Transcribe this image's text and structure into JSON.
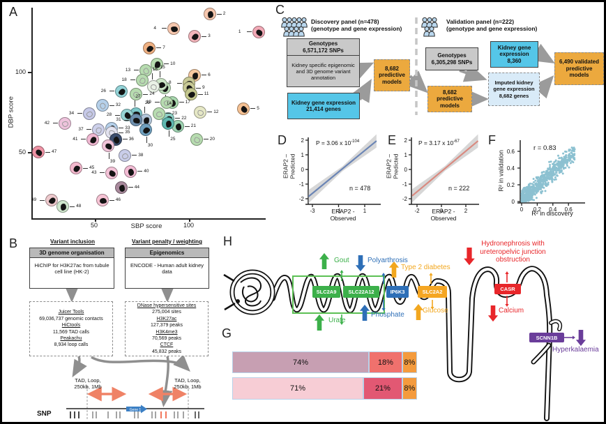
{
  "panel_labels": {
    "a": "A",
    "b": "B",
    "c": "C",
    "d": "D",
    "e": "E",
    "f": "F",
    "g": "G",
    "h": "H"
  },
  "chart_data": [
    {
      "panel": "A",
      "type": "scatter",
      "xlabel": "SBP score",
      "ylabel": "DBP score",
      "x_ticks": [
        50,
        100
      ],
      "y_ticks": [
        50,
        100
      ],
      "xlim": [
        15,
        145
      ],
      "ylim": [
        10,
        140
      ],
      "points": [
        {
          "n": 1,
          "sbp": 137,
          "dbp": 125,
          "color": "#f2a9b6",
          "side": "left",
          "blob": "dark"
        },
        {
          "n": 2,
          "sbp": 111,
          "dbp": 136,
          "color": "#f6c7ae",
          "side": "right",
          "blob": "dark"
        },
        {
          "n": 3,
          "sbp": 103,
          "dbp": 122,
          "color": "#f2b4ba",
          "side": "right",
          "blob": "dark"
        },
        {
          "n": 4,
          "sbp": 92,
          "dbp": 127,
          "color": "#f6c7ae",
          "side": "left",
          "blob": "dark"
        },
        {
          "n": 5,
          "sbp": 129,
          "dbp": 77,
          "color": "#f5c193",
          "side": "right",
          "blob": "dark"
        },
        {
          "n": 6,
          "sbp": 103,
          "dbp": 98,
          "color": "#f6c9a0",
          "side": "right",
          "blob": "dark"
        },
        {
          "n": 7,
          "sbp": 79,
          "dbp": 115,
          "color": "#f0b183",
          "side": "right",
          "blob": "dark"
        },
        {
          "n": 8,
          "sbp": 100,
          "dbp": 93,
          "color": "#c9ca96",
          "side": "left",
          "blob": "dark"
        },
        {
          "n": 9,
          "sbp": 100,
          "dbp": 90,
          "color": "#c9ca96",
          "side": "right",
          "blob": "dark"
        },
        {
          "n": 10,
          "sbp": 83,
          "dbp": 105,
          "color": "#b7dcb0",
          "side": "right",
          "blob": "dark"
        },
        {
          "n": 11,
          "sbp": 101,
          "dbp": 86,
          "color": "#c4c78e",
          "side": "right",
          "blob": "dark"
        },
        {
          "n": 12,
          "sbp": 106,
          "dbp": 75,
          "color": "#e6e8c6",
          "side": "right",
          "blob": "light"
        },
        {
          "n": 13,
          "sbp": 77,
          "dbp": 101,
          "color": "#b7dcb0",
          "side": "left",
          "blob": "light"
        },
        {
          "n": 14,
          "sbp": 87,
          "dbp": 90,
          "color": "#bfe0bb",
          "side": "below",
          "blob": "dark"
        },
        {
          "n": 15,
          "sbp": 85,
          "dbp": 92,
          "color": "#cde7c8",
          "side": "above",
          "blob": "dark"
        },
        {
          "n": 16,
          "sbp": 81,
          "dbp": 91,
          "color": "#e9f2e6",
          "side": "above",
          "blob": "light"
        },
        {
          "n": 17,
          "sbp": 91,
          "dbp": 81,
          "color": "#a8d8ae",
          "side": "right",
          "blob": "dark"
        },
        {
          "n": 18,
          "sbp": 75,
          "dbp": 95,
          "color": "#b7dcb0",
          "side": "left",
          "blob": "light"
        },
        {
          "n": 19,
          "sbp": 88,
          "dbp": 81,
          "color": "#b7dcb0",
          "side": "left",
          "blob": "light"
        },
        {
          "n": 20,
          "sbp": 104,
          "dbp": 58,
          "color": "#b7dcb0",
          "side": "right",
          "blob": "light"
        },
        {
          "n": 21,
          "sbp": 94,
          "dbp": 66,
          "color": "#9ed4b2",
          "side": "right",
          "blob": "dark"
        },
        {
          "n": 22,
          "sbp": 89,
          "dbp": 71,
          "color": "#8fd0c6",
          "side": "right",
          "blob": "dark"
        },
        {
          "n": 23,
          "sbp": 84,
          "dbp": 74,
          "color": "#b7dcb0",
          "side": "right",
          "blob": "light"
        },
        {
          "n": 24,
          "sbp": 72,
          "dbp": 86,
          "color": "#b7dcb0",
          "side": "right",
          "blob": "light"
        },
        {
          "n": 25,
          "sbp": 89,
          "dbp": 68,
          "color": "#5fb8b0",
          "side": "below",
          "blob": "dark"
        },
        {
          "n": 26,
          "sbp": 64,
          "dbp": 88,
          "color": "#93d2d6",
          "side": "left",
          "blob": "dark"
        },
        {
          "n": 27,
          "sbp": 72,
          "dbp": 74,
          "color": "#7cc7c9",
          "side": "above",
          "blob": "dark"
        },
        {
          "n": 28,
          "sbp": 67,
          "dbp": 73,
          "color": "#96d3d3",
          "side": "left",
          "blob": "dark"
        },
        {
          "n": 29,
          "sbp": 77,
          "dbp": 70,
          "color": "#b3c6da",
          "side": "above",
          "blob": "dark"
        },
        {
          "n": 30,
          "sbp": 77,
          "dbp": 64,
          "color": "#6fa0bf",
          "side": "below",
          "blob": "dark"
        },
        {
          "n": 31,
          "sbp": 72,
          "dbp": 70,
          "color": "#6d8fae",
          "side": "left",
          "blob": "dark"
        },
        {
          "n": 32,
          "sbp": 54,
          "dbp": 79,
          "color": "#b5d0ea",
          "side": "right",
          "blob": "light"
        },
        {
          "n": 33,
          "sbp": 59,
          "dbp": 65,
          "color": "#b5d0ea",
          "side": "right",
          "blob": "dark"
        },
        {
          "n": 34,
          "sbp": 47,
          "dbp": 74,
          "color": "#c6c9e8",
          "side": "left",
          "blob": "light"
        },
        {
          "n": 35,
          "sbp": 59,
          "dbp": 62,
          "color": "#e3e3f0",
          "side": "right",
          "blob": "light"
        },
        {
          "n": 36,
          "sbp": 61,
          "dbp": 58,
          "color": "#3d4f6e",
          "side": "right",
          "blob": "dark"
        },
        {
          "n": 37,
          "sbp": 52,
          "dbp": 64,
          "color": "#cdd0ea",
          "side": "left",
          "blob": "light"
        },
        {
          "n": 38,
          "sbp": 66,
          "dbp": 48,
          "color": "#c9cde9",
          "side": "right",
          "blob": "light"
        },
        {
          "n": 39,
          "sbp": 57,
          "dbp": 54,
          "color": "#f0c3d8",
          "side": "below",
          "blob": "dark"
        },
        {
          "n": 40,
          "sbp": 69,
          "dbp": 38,
          "color": "#f2bcd4",
          "side": "right",
          "blob": "dark"
        },
        {
          "n": 41,
          "sbp": 49,
          "dbp": 58,
          "color": "#f0b8d2",
          "side": "left",
          "blob": "dark"
        },
        {
          "n": 42,
          "sbp": 34,
          "dbp": 68,
          "color": "#eec3dc",
          "side": "left",
          "blob": "light"
        },
        {
          "n": 43,
          "sbp": 59,
          "dbp": 37,
          "color": "#f4c3d8",
          "side": "left",
          "blob": "dark"
        },
        {
          "n": 44,
          "sbp": 64,
          "dbp": 28,
          "color": "#a98a9d",
          "side": "right",
          "blob": "dark"
        },
        {
          "n": 45,
          "sbp": 40,
          "dbp": 40,
          "color": "#f4b9ce",
          "side": "right",
          "blob": "dark"
        },
        {
          "n": 46,
          "sbp": 54,
          "dbp": 20,
          "color": "#f6c3d4",
          "side": "right",
          "blob": "dark"
        },
        {
          "n": 47,
          "sbp": 20,
          "dbp": 50,
          "color": "#ef93a5",
          "side": "right",
          "blob": "dark"
        },
        {
          "n": 48,
          "sbp": 33,
          "dbp": 16,
          "color": "#cfe6cd",
          "side": "right",
          "blob": "dark"
        },
        {
          "n": 49,
          "sbp": 27,
          "dbp": 20,
          "color": "#eec9cd",
          "side": "left",
          "blob": "dark"
        }
      ]
    },
    {
      "panel": "D",
      "type": "line",
      "p_base": "P = 3.06 x 10",
      "p_exp": "-104",
      "n_label": "n = 478",
      "xlabel": [
        "ERAP2 -",
        "Observed"
      ],
      "ylabel": [
        "ERAP2 –",
        "Predicted"
      ],
      "x_ticks": [
        -3,
        -1,
        1
      ],
      "y_ticks": [
        2,
        1,
        0,
        -1,
        -2
      ],
      "line": {
        "x1": -3.3,
        "y1": -1.85,
        "x2": 1.9,
        "y2": 1.95
      },
      "line_color": "#6b85b5",
      "band_color": "#c9c9c9"
    },
    {
      "panel": "E",
      "type": "line",
      "p_base": "P = 3.17 x 10",
      "p_exp": "-67",
      "n_label": "n = 222",
      "xlabel": [
        "ERAP2 -",
        "Observed"
      ],
      "ylabel": [
        "ERAP2 –",
        "Predicted"
      ],
      "x_ticks": [
        -2,
        0,
        2
      ],
      "y_ticks": [
        2,
        1,
        0,
        -1,
        -2
      ],
      "line": {
        "x1": -2.4,
        "y1": -1.8,
        "x2": 3.0,
        "y2": 1.95
      },
      "line_color": "#d98a80",
      "band_color": "#c9c9c9"
    },
    {
      "panel": "F",
      "type": "scatter",
      "r_label": "r = 0.83",
      "r": 0.83,
      "xlabel": "R² in discovery",
      "ylabel": "R² in validation",
      "x_ticks": [
        0,
        0.2,
        0.4,
        0.6
      ],
      "y_ticks": [
        0,
        0.2,
        0.4,
        0.6
      ],
      "n_points": 750,
      "point_color": "#79b7c9"
    },
    {
      "panel": "G",
      "type": "stacked_bar",
      "bars": [
        {
          "labels": [
            "74%",
            "18%",
            "8%"
          ],
          "values": [
            74,
            18,
            8
          ],
          "colors": [
            "#c79fb2",
            "#f0716d",
            "#f49b3d"
          ]
        },
        {
          "labels": [
            "71%",
            "21%",
            "8%"
          ],
          "values": [
            71,
            21,
            8
          ],
          "colors": [
            "#f7cdd5",
            "#e25873",
            "#f49b3d"
          ]
        }
      ]
    }
  ],
  "panelC": {
    "disc_title1": "Discovery panel (n=478)",
    "disc_title2": "(genotype and gene expression)",
    "val_title1": "Validation panel (n=222)",
    "val_title2": "(genotype and gene expression)",
    "gray1_l1": "Genotypes",
    "gray1_l2": "6,571,172 SNPs",
    "gray1_body": "Kidney specific epigenomic and 3D genome variant annotation",
    "blue1_l1": "Kidney gene expression",
    "blue1_l2": "21,414 genes",
    "orange1": "8,682 predictive models",
    "gray2_l1": "Genotypes",
    "gray2_l2": "6,305,298 SNPs",
    "blue2_l1": "Kidney gene expression",
    "blue2_l2": "8,360",
    "orange2": "8,682 predictive models",
    "lblue_l1": "Imputed kidney gene expression",
    "lblue_l2": "8,682 genes",
    "orange3": "6,490 validated predictive models"
  },
  "panelB": {
    "h1": "Variant inclusion",
    "h2": "Variant penalty / weighting",
    "box1_hdr": "3D genome organisation",
    "box1_body": "HiChIP for H3K27ac from tubule cell line (HK-2)",
    "box2_hdr": "Epigenomics",
    "box2_body": "ENCODE - Human adult kidney data",
    "dash1": [
      {
        "t": "Juicer Tools",
        "u": true
      },
      {
        "t": "69,036,737 genomic contacts",
        "u": false
      },
      {
        "t": "HiCtools",
        "u": true
      },
      {
        "t": "11,569 TAD calls",
        "u": false
      },
      {
        "t": "Peakachu",
        "u": true
      },
      {
        "t": "8,934 loop calls",
        "u": false
      }
    ],
    "dash2": [
      {
        "t": "DNase hypersensitive sites",
        "u": true
      },
      {
        "t": "275,004 sites",
        "u": false
      },
      {
        "t": "H3K27ac",
        "u": true
      },
      {
        "t": "127,379 peaks",
        "u": false
      },
      {
        "t": "H3K4me3",
        "u": true
      },
      {
        "t": "70,569 peaks",
        "u": false
      },
      {
        "t": "CTCF",
        "u": true
      },
      {
        "t": "45,832 peaks",
        "u": false
      }
    ],
    "tad_left1": "TAD, Loop,",
    "tad_left2": "250kb, 1Mb",
    "tad_right1": "TAD, Loop,",
    "tad_right2": "250kb, 1Mb",
    "gene_label": "Gene 1",
    "snp_label": "SNP",
    "snp_ticks": [
      {
        "x": 98,
        "c": "#333"
      },
      {
        "x": 104,
        "c": "#333"
      },
      {
        "x": 110,
        "c": "#333"
      },
      {
        "x": 130,
        "c": "#9a9a9a"
      },
      {
        "x": 135,
        "c": "#9a9a9a"
      },
      {
        "x": 152,
        "c": "#9a9a9a"
      },
      {
        "x": 164,
        "c": "#9a9a9a"
      },
      {
        "x": 169,
        "c": "#9a9a9a"
      },
      {
        "x": 190,
        "c": "#9a9a9a"
      },
      {
        "x": 195,
        "c": "#9a9a9a"
      },
      {
        "x": 215,
        "c": "#9a9a9a"
      },
      {
        "x": 220,
        "c": "#9a9a9a"
      },
      {
        "x": 228,
        "c": "#f0694a"
      },
      {
        "x": 235,
        "c": "#f0694a"
      },
      {
        "x": 247,
        "c": "#9a9a9a"
      },
      {
        "x": 252,
        "c": "#9a9a9a"
      },
      {
        "x": 260,
        "c": "#9a9a9a"
      },
      {
        "x": 277,
        "c": "#555"
      },
      {
        "x": 282,
        "c": "#555"
      }
    ]
  },
  "panelH": {
    "colors": {
      "green": "#3cb04a",
      "blue": "#2e6fb7",
      "yellow": "#f2a71f",
      "red": "#e8262a",
      "purple": "#6a3d9a"
    },
    "genes": [
      {
        "label": "SLC2A9",
        "color": "#3cb04a"
      },
      {
        "label": "SLC22A12",
        "color": "#3cb04a"
      },
      {
        "label": "IP6K3",
        "color": "#2e6fb7"
      },
      {
        "label": "SLC2A2",
        "color": "#f5a623"
      },
      {
        "label": "CASR",
        "color": "#e8262a"
      },
      {
        "label": "SCNN1B",
        "color": "#6a3d9a"
      }
    ],
    "gout": "Gout",
    "urate": "Urate",
    "polyarthrosis": "Polyarthrosis",
    "phosphate": "Phosphate",
    "t2d": "Type 2 diabetes",
    "glucose": "Glucose",
    "hydro_l1": "Hydronephrosis with",
    "hydro_l2": "ureteropelvic junction",
    "hydro_l3": "obstruction",
    "calcium": "Calcium",
    "hyperkalaemia": "Hyperkalaemia"
  }
}
